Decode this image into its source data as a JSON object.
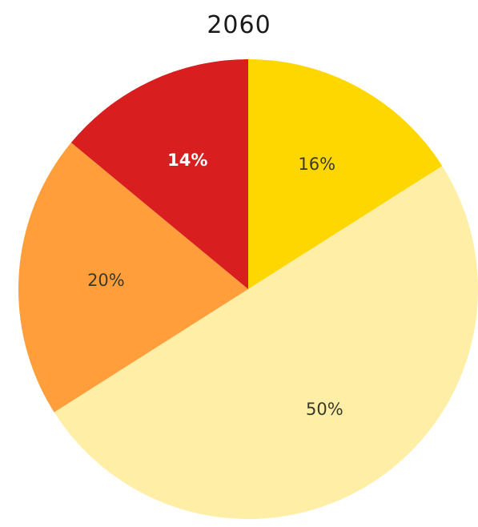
{
  "chart_data": {
    "type": "pie",
    "title": "2060",
    "slices": [
      {
        "label": "16%",
        "value": 16,
        "color": "#FFD700",
        "label_color": "#3a3a2a",
        "bold": false
      },
      {
        "label": "50%",
        "value": 50,
        "color": "#FFEEA6",
        "label_color": "#3a3a2a",
        "bold": false
      },
      {
        "label": "20%",
        "value": 20,
        "color": "#FF9E3A",
        "label_color": "#3a3a2a",
        "bold": false
      },
      {
        "label": "14%",
        "value": 14,
        "color": "#D81E1E",
        "label_color": "#ffffff",
        "bold": true
      }
    ],
    "start_angle_deg": 0,
    "direction": "clockwise"
  }
}
